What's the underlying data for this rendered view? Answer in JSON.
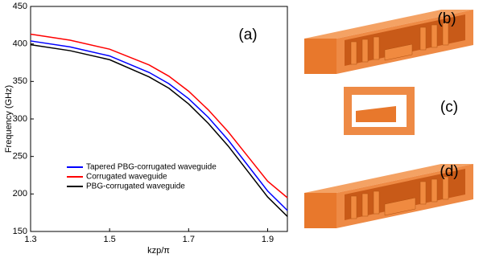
{
  "chart_data": {
    "type": "line",
    "annotation": "(a)",
    "x_label": "kzp/π",
    "y_label": "Frequency (GHz)",
    "x": [
      1.3,
      1.4,
      1.5,
      1.6,
      1.65,
      1.7,
      1.75,
      1.8,
      1.85,
      1.9,
      1.95
    ],
    "series": [
      {
        "name": "Tapered PBG-corrugated waveguide",
        "color": "#0000ff",
        "values": [
          404,
          396,
          384,
          362,
          347,
          327,
          302,
          272,
          238,
          204,
          178
        ]
      },
      {
        "name": "Corrugated waveguide",
        "color": "#ff0000",
        "values": [
          413,
          405,
          393,
          372,
          357,
          337,
          312,
          283,
          250,
          217,
          195
        ]
      },
      {
        "name": "PBG-corrugated waveguide",
        "color": "#000000",
        "values": [
          399,
          391,
          379,
          356,
          341,
          320,
          294,
          264,
          230,
          196,
          170
        ]
      }
    ],
    "xlim": [
      1.3,
      1.95
    ],
    "xticks": [
      1.3,
      1.5,
      1.7,
      1.9
    ],
    "ylim": [
      150,
      450
    ],
    "yticks": [
      150,
      200,
      250,
      300,
      350,
      400,
      450
    ],
    "grid": false,
    "legend": "lower-left"
  },
  "panels": [
    {
      "label": "(b)"
    },
    {
      "label": "(c)"
    },
    {
      "label": "(d)"
    }
  ]
}
